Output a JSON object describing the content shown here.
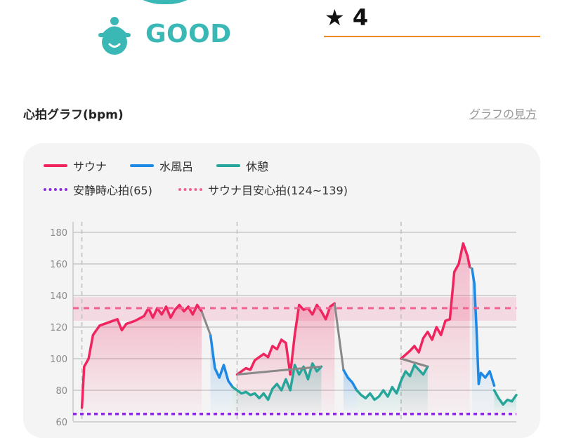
{
  "header": {
    "mood_label": "GOOD",
    "rating_star": "★",
    "rating_value": "4"
  },
  "section": {
    "title": "心拍グラフ(bpm)",
    "guide_link": "グラフの見方"
  },
  "colors": {
    "teal": "#3ab8b5",
    "sauna": "#f0245e",
    "water": "#1e88e5",
    "rest": "#26a69a",
    "resting_hr": "#8a2be2",
    "target_hr": "#f06292",
    "accent_line": "#f08a24"
  },
  "legend": {
    "sauna": "サウナ",
    "water": "水風呂",
    "rest": "休憩",
    "resting": "安静時心拍(65)",
    "target": "サウナ目安心拍(124~139)"
  },
  "chart_data": {
    "type": "line",
    "ylim": [
      60,
      180
    ],
    "yticks": [
      "60",
      "80",
      "100",
      "120",
      "140",
      "160",
      "180"
    ],
    "grid": true,
    "resting_hr": 65,
    "target_band": [
      124,
      139
    ],
    "target_line": 132,
    "x_range": [
      0,
      100
    ],
    "set_dividers_x": [
      2,
      37,
      74
    ],
    "series": [
      {
        "name": "サウナ",
        "color": "#f0245e",
        "segments": [
          [
            [
              2,
              69
            ],
            [
              2.5,
              95
            ],
            [
              3.5,
              100
            ],
            [
              4.5,
              115
            ],
            [
              6,
              121
            ],
            [
              8,
              123
            ],
            [
              10,
              125
            ],
            [
              11,
              118
            ],
            [
              12,
              122
            ],
            [
              14,
              124
            ],
            [
              16,
              127
            ],
            [
              17,
              132
            ],
            [
              18,
              126
            ],
            [
              19,
              132
            ],
            [
              20,
              128
            ],
            [
              21,
              133
            ],
            [
              22,
              126
            ],
            [
              23,
              131
            ],
            [
              24,
              134
            ],
            [
              25,
              130
            ],
            [
              26,
              133
            ],
            [
              27,
              128
            ],
            [
              28,
              134
            ],
            [
              29,
              130
            ]
          ],
          [
            [
              37,
              90
            ],
            [
              39,
              94
            ],
            [
              40,
              93
            ],
            [
              41,
              99
            ],
            [
              43,
              103
            ],
            [
              44,
              101
            ],
            [
              45,
              108
            ],
            [
              46,
              106
            ],
            [
              47,
              112
            ],
            [
              48,
              110
            ],
            [
              49,
              90
            ],
            [
              50,
              115
            ],
            [
              51,
              134
            ],
            [
              52,
              131
            ],
            [
              53,
              132
            ],
            [
              54,
              128
            ],
            [
              55,
              134
            ],
            [
              56,
              130
            ],
            [
              57,
              125
            ],
            [
              58,
              133
            ],
            [
              59,
              135
            ]
          ],
          [
            [
              74,
              100
            ],
            [
              76,
              105
            ],
            [
              77,
              108
            ],
            [
              78,
              104
            ],
            [
              79,
              113
            ],
            [
              80,
              117
            ],
            [
              81,
              112
            ],
            [
              82,
              120
            ],
            [
              83,
              115
            ],
            [
              84,
              124
            ],
            [
              85,
              125
            ],
            [
              86,
              155
            ],
            [
              87,
              160
            ],
            [
              88,
              173
            ],
            [
              89,
              165
            ],
            [
              89.5,
              158
            ]
          ]
        ]
      },
      {
        "name": "水風呂",
        "color": "#1e88e5",
        "segments": [
          [
            [
              31,
              115
            ],
            [
              32,
              94
            ],
            [
              33,
              88
            ],
            [
              34,
              96
            ],
            [
              35,
              86
            ],
            [
              36,
              82
            ]
          ],
          [
            [
              61,
              93
            ],
            [
              62,
              88
            ],
            [
              63,
              85
            ],
            [
              64,
              80
            ]
          ],
          [
            [
              90,
              157
            ],
            [
              90.5,
              148
            ],
            [
              91,
              120
            ],
            [
              91.5,
              84
            ],
            [
              92,
              91
            ],
            [
              93,
              88
            ],
            [
              94,
              92
            ],
            [
              95,
              83
            ]
          ]
        ]
      },
      {
        "name": "休憩",
        "color": "#26a69a",
        "segments": [
          [
            [
              36,
              82
            ],
            [
              37,
              80
            ],
            [
              38,
              78
            ],
            [
              39,
              79
            ],
            [
              40,
              77
            ],
            [
              41,
              78
            ],
            [
              42,
              75
            ],
            [
              43,
              78
            ],
            [
              44,
              74
            ],
            [
              45,
              81
            ],
            [
              46,
              84
            ],
            [
              47,
              80
            ],
            [
              48,
              87
            ],
            [
              49,
              80
            ],
            [
              50,
              96
            ],
            [
              51,
              90
            ],
            [
              52,
              95
            ],
            [
              53,
              87
            ],
            [
              54,
              97
            ],
            [
              55,
              92
            ],
            [
              56,
              95
            ]
          ],
          [
            [
              64,
              80
            ],
            [
              65,
              77
            ],
            [
              66,
              75
            ],
            [
              67,
              78
            ],
            [
              68,
              74
            ],
            [
              69,
              76
            ],
            [
              70,
              80
            ],
            [
              71,
              76
            ],
            [
              72,
              82
            ],
            [
              73,
              78
            ],
            [
              74,
              86
            ],
            [
              75,
              92
            ],
            [
              76,
              89
            ],
            [
              77,
              96
            ],
            [
              78,
              93
            ],
            [
              79,
              90
            ],
            [
              80,
              95
            ]
          ],
          [
            [
              95,
              80
            ],
            [
              96,
              75
            ],
            [
              97,
              71
            ],
            [
              98,
              74
            ],
            [
              99,
              73
            ],
            [
              100,
              77
            ]
          ]
        ]
      }
    ]
  }
}
